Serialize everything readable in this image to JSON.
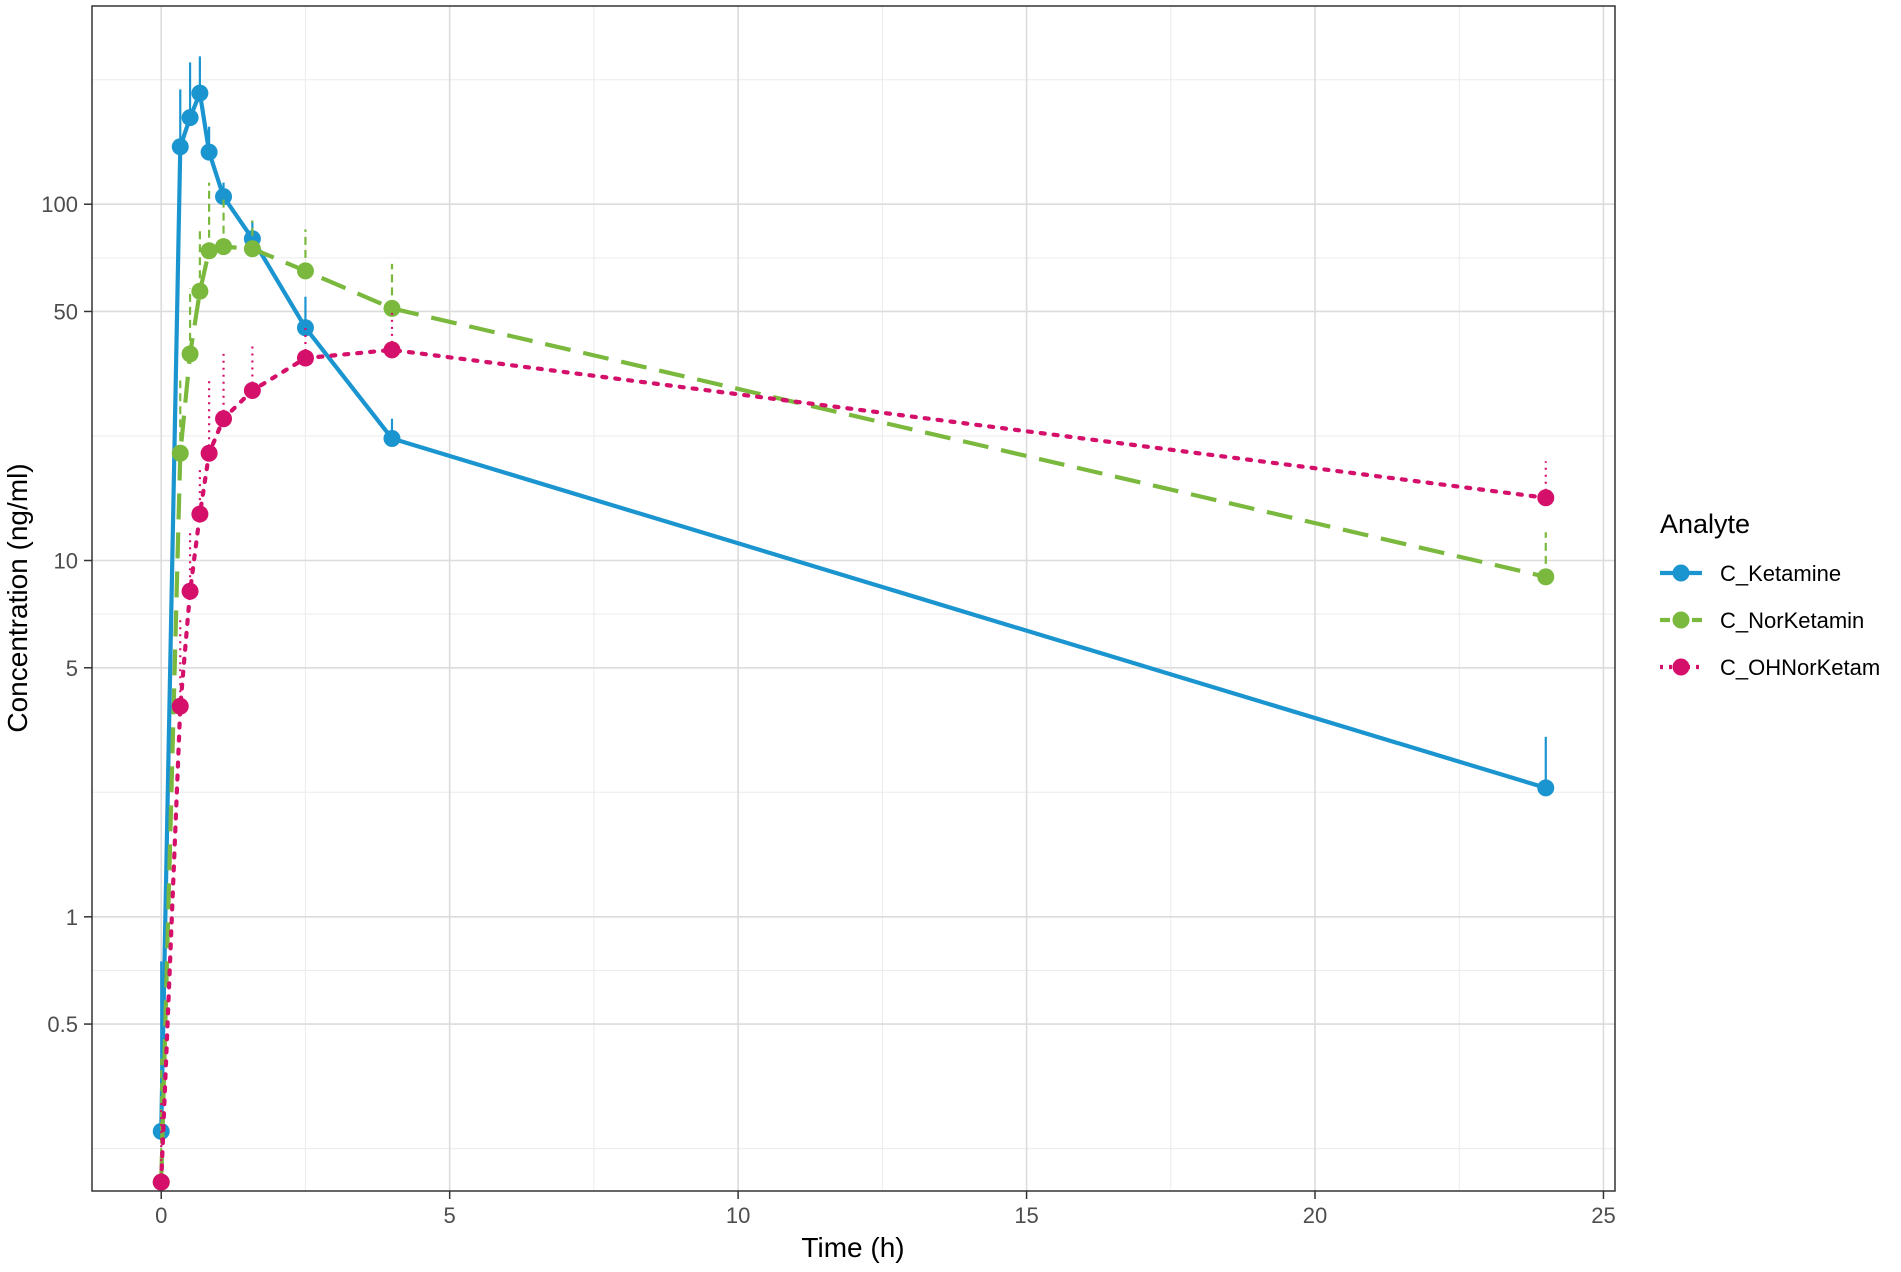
{
  "chart_data": {
    "type": "line",
    "xlabel": "Time (h)",
    "ylabel": "Concentration (ng/ml)",
    "x_scale": "linear",
    "y_scale": "log10",
    "xlim": [
      -1.2,
      25.2
    ],
    "ylim": [
      0.17,
      360
    ],
    "x_ticks": [
      0,
      5,
      10,
      15,
      20,
      25
    ],
    "x_tick_labels": [
      "0",
      "5",
      "10",
      "15",
      "20",
      "25"
    ],
    "y_ticks": [
      0.5,
      1,
      5,
      10,
      50,
      100
    ],
    "y_tick_labels": [
      "0.5",
      "1",
      "5",
      "10",
      "50",
      "100"
    ],
    "grid": true,
    "legend": {
      "title": "Analyte",
      "position": "right"
    },
    "series": [
      {
        "name": "C_Ketamine",
        "color": "#1b95d0",
        "linestyle": "solid",
        "x": [
          0,
          0.33,
          0.5,
          0.67,
          0.83,
          1.08,
          1.58,
          2.5,
          4,
          24
        ],
        "y": [
          0.25,
          145,
          175,
          205,
          140,
          105,
          80,
          45,
          22,
          2.3
        ],
        "err_upper": [
          0.75,
          210,
          250,
          260,
          165,
          115,
          90,
          55,
          25,
          3.2
        ]
      },
      {
        "name": "C_NorKetamin",
        "color": "#7ab93d",
        "linestyle": "dashed",
        "x": [
          0,
          0.33,
          0.5,
          0.67,
          0.83,
          1.08,
          1.58,
          2.5,
          4,
          24
        ],
        "y": [
          0.18,
          20,
          38,
          57,
          74,
          76,
          75,
          65,
          51,
          9
        ],
        "err_upper": [
          0.4,
          32,
          58,
          85,
          115,
          105,
          90,
          85,
          68,
          12
        ]
      },
      {
        "name": "C_OHNorKetam",
        "color": "#d4106b",
        "linestyle": "dotted",
        "x": [
          0,
          0.33,
          0.5,
          0.67,
          0.83,
          1.08,
          1.58,
          2.5,
          4,
          24
        ],
        "y": [
          0.18,
          3.9,
          8.2,
          13.5,
          20,
          25,
          30,
          37,
          39,
          15
        ],
        "err_upper": [
          0.3,
          7,
          12,
          18,
          32,
          38,
          40,
          45,
          50,
          19
        ]
      }
    ]
  }
}
